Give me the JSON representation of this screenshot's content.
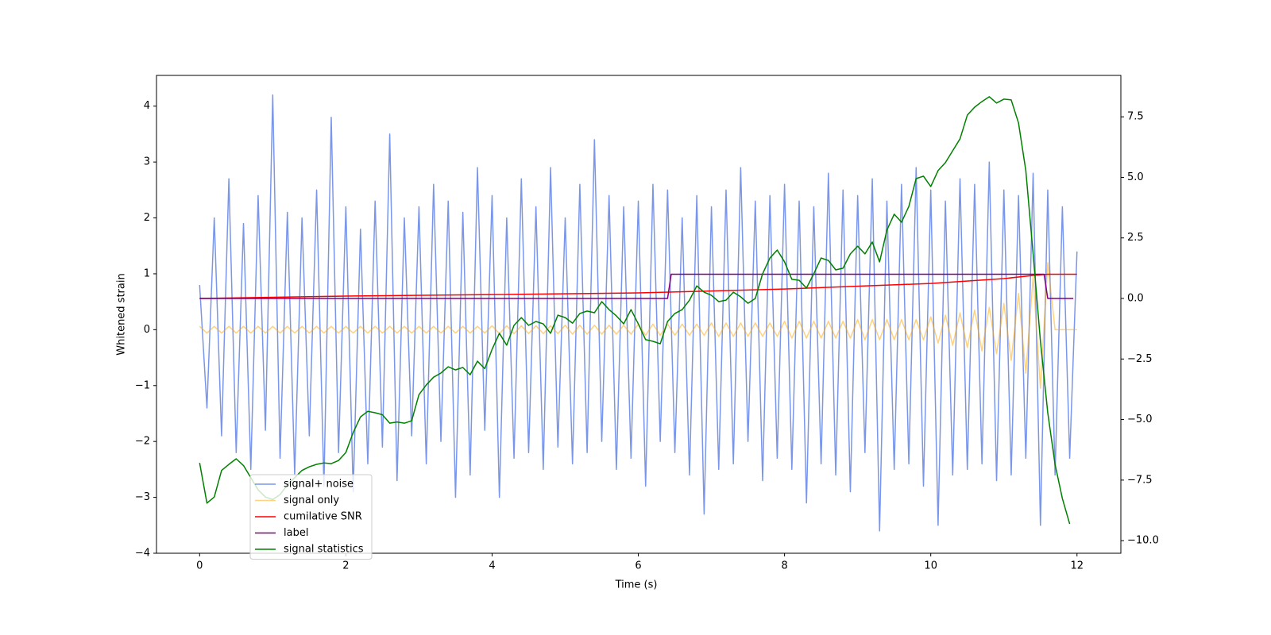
{
  "chart_data": {
    "type": "line",
    "xlabel": "Time (s)",
    "ylabel": "Whitened strain",
    "xlim": [
      -0.59,
      12.6
    ],
    "ylim": [
      -4.0,
      4.55
    ],
    "y2lim": [
      -10.52,
      9.21
    ],
    "xticks": [
      0,
      2,
      4,
      6,
      8,
      10,
      12
    ],
    "yticks": [
      {
        "value": -4,
        "label": "−4"
      },
      {
        "value": -3,
        "label": "−3"
      },
      {
        "value": -2,
        "label": "−2"
      },
      {
        "value": -1,
        "label": "−1"
      },
      0,
      1,
      2,
      3,
      4
    ],
    "y2ticks": [
      {
        "value": -10,
        "label": "−10.0"
      },
      {
        "value": -7.5,
        "label": "−7.5"
      },
      {
        "value": -5,
        "label": "−5.0"
      },
      {
        "value": -2.5,
        "label": "−2.5"
      },
      {
        "value": 0,
        "label": "0.0"
      },
      {
        "value": 2.5,
        "label": "2.5"
      },
      {
        "value": 5,
        "label": "5.0"
      },
      {
        "value": 7.5,
        "label": "7.5"
      }
    ],
    "grid": false,
    "legend": "lower left",
    "series": [
      {
        "name": "signal+ noise",
        "color": "#4169e1",
        "alpha": 0.7,
        "x": [
          0,
          0.1,
          0.2,
          0.3,
          0.4,
          0.5,
          0.6,
          0.7,
          0.8,
          0.9,
          1,
          1.1,
          1.2,
          1.3,
          1.4,
          1.5,
          1.6,
          1.7,
          1.8,
          1.9,
          2,
          2.1,
          2.2,
          2.3,
          2.4,
          2.5,
          2.6,
          2.7,
          2.8,
          2.9,
          3,
          3.1,
          3.2,
          3.3,
          3.4,
          3.5,
          3.6,
          3.7,
          3.8,
          3.9,
          4,
          4.1,
          4.2,
          4.3,
          4.4,
          4.5,
          4.6,
          4.7,
          4.8,
          4.9,
          5,
          5.1,
          5.2,
          5.3,
          5.4,
          5.5,
          5.6,
          5.7,
          5.8,
          5.9,
          6,
          6.1,
          6.2,
          6.3,
          6.4,
          6.5,
          6.6,
          6.7,
          6.8,
          6.9,
          7,
          7.1,
          7.2,
          7.3,
          7.4,
          7.5,
          7.6,
          7.7,
          7.8,
          7.9,
          8,
          8.1,
          8.2,
          8.3,
          8.4,
          8.5,
          8.6,
          8.7,
          8.8,
          8.9,
          9,
          9.1,
          9.2,
          9.3,
          9.4,
          9.5,
          9.6,
          9.7,
          9.8,
          9.9,
          10,
          10.1,
          10.2,
          10.3,
          10.4,
          10.5,
          10.6,
          10.7,
          10.8,
          10.9,
          11,
          11.1,
          11.2,
          11.3,
          11.4,
          11.5,
          11.6,
          11.7,
          11.8,
          11.9,
          12
        ],
        "values": [
          0.8,
          -1.4,
          2.0,
          -1.9,
          2.7,
          -2.2,
          1.9,
          -2.5,
          2.4,
          -1.8,
          4.2,
          -2.3,
          2.1,
          -2.6,
          2.0,
          -1.9,
          2.5,
          -2.8,
          3.8,
          -2.2,
          2.2,
          -2.9,
          1.8,
          -2.4,
          2.3,
          -2.1,
          3.5,
          -2.7,
          2.0,
          -1.9,
          2.2,
          -2.4,
          2.6,
          -2.0,
          2.3,
          -3.0,
          2.1,
          -2.6,
          2.9,
          -1.8,
          2.4,
          -3.0,
          2.0,
          -2.3,
          2.7,
          -2.2,
          2.2,
          -2.5,
          2.9,
          -2.1,
          2.0,
          -2.4,
          2.6,
          -2.2,
          3.4,
          -2.0,
          2.4,
          -2.5,
          2.2,
          -2.3,
          2.3,
          -2.8,
          2.6,
          -2.0,
          2.5,
          -2.2,
          2.0,
          -2.6,
          2.4,
          -3.3,
          2.2,
          -2.5,
          2.5,
          -2.4,
          2.9,
          -2.0,
          2.3,
          -2.7,
          2.4,
          -2.3,
          2.6,
          -2.5,
          2.3,
          -3.1,
          2.2,
          -2.4,
          2.8,
          -2.6,
          2.5,
          -2.9,
          2.4,
          -2.2,
          2.7,
          -3.6,
          2.3,
          -2.5,
          2.6,
          -2.4,
          2.9,
          -2.8,
          2.5,
          -3.5,
          2.3,
          -2.6,
          2.7,
          -2.5,
          2.6,
          -2.4,
          3.0,
          -2.7,
          2.5,
          -2.6,
          2.4,
          -2.3,
          2.8,
          -3.5,
          2.5,
          -2.6,
          2.2,
          -2.3,
          1.4
        ]
      },
      {
        "name": "signal only",
        "color": "#ffa500",
        "alpha": 0.5,
        "x": [
          0,
          0.1,
          0.2,
          0.3,
          0.4,
          0.5,
          0.6,
          0.7,
          0.8,
          0.9,
          1,
          1.1,
          1.2,
          1.3,
          1.4,
          1.5,
          1.6,
          1.7,
          1.8,
          1.9,
          2,
          2.1,
          2.2,
          2.3,
          2.4,
          2.5,
          2.6,
          2.7,
          2.8,
          2.9,
          3,
          3.1,
          3.2,
          3.3,
          3.4,
          3.5,
          3.6,
          3.7,
          3.8,
          3.9,
          4,
          4.1,
          4.2,
          4.3,
          4.4,
          4.5,
          4.6,
          4.7,
          4.8,
          4.9,
          5,
          5.1,
          5.2,
          5.3,
          5.4,
          5.5,
          5.6,
          5.7,
          5.8,
          5.9,
          6,
          6.1,
          6.2,
          6.3,
          6.4,
          6.5,
          6.6,
          6.7,
          6.8,
          6.9,
          7,
          7.1,
          7.2,
          7.3,
          7.4,
          7.5,
          7.6,
          7.7,
          7.8,
          7.9,
          8,
          8.1,
          8.2,
          8.3,
          8.4,
          8.5,
          8.6,
          8.7,
          8.8,
          8.9,
          9,
          9.1,
          9.2,
          9.3,
          9.4,
          9.5,
          9.6,
          9.7,
          9.8,
          9.9,
          10,
          10.1,
          10.2,
          10.3,
          10.4,
          10.5,
          10.6,
          10.7,
          10.8,
          10.9,
          11,
          11.1,
          11.2,
          11.3,
          11.4,
          11.5,
          11.6,
          11.7,
          11.8,
          11.9,
          12
        ],
        "values": [
          0.06,
          -0.06,
          0.06,
          -0.06,
          0.06,
          -0.06,
          0.06,
          -0.06,
          0.06,
          -0.06,
          0.06,
          -0.06,
          0.06,
          -0.06,
          0.06,
          -0.06,
          0.06,
          -0.06,
          0.06,
          -0.06,
          0.06,
          -0.06,
          0.06,
          -0.06,
          0.06,
          -0.06,
          0.06,
          -0.06,
          0.06,
          -0.06,
          0.06,
          -0.06,
          0.06,
          -0.06,
          0.06,
          -0.06,
          0.06,
          -0.06,
          0.06,
          -0.06,
          0.07,
          -0.07,
          0.07,
          -0.07,
          0.07,
          -0.07,
          0.07,
          -0.07,
          0.07,
          -0.07,
          0.08,
          -0.08,
          0.08,
          -0.08,
          0.08,
          -0.08,
          0.08,
          -0.08,
          0.08,
          -0.08,
          0.1,
          -0.1,
          0.1,
          -0.1,
          0.1,
          -0.1,
          0.1,
          -0.1,
          0.1,
          -0.1,
          0.12,
          -0.12,
          0.12,
          -0.12,
          0.12,
          -0.12,
          0.12,
          -0.12,
          0.12,
          -0.12,
          0.15,
          -0.15,
          0.15,
          -0.15,
          0.15,
          -0.15,
          0.15,
          -0.15,
          0.15,
          -0.15,
          0.18,
          -0.18,
          0.18,
          -0.18,
          0.18,
          -0.18,
          0.18,
          -0.18,
          0.18,
          -0.18,
          0.23,
          -0.24,
          0.26,
          -0.28,
          0.3,
          -0.32,
          0.35,
          -0.38,
          0.4,
          -0.43,
          0.47,
          -0.55,
          0.65,
          -0.78,
          0.95,
          -1.05,
          1.2,
          0,
          0,
          0,
          0
        ]
      },
      {
        "name": "cumilative SNR",
        "color": "#ff0000",
        "axis": "y2",
        "x": [
          0,
          2,
          4,
          6,
          8,
          10,
          11,
          11.4,
          11.6,
          12
        ],
        "values": [
          0,
          0.1,
          0.16,
          0.23,
          0.39,
          0.62,
          0.82,
          0.95,
          1.0,
          1.0
        ]
      },
      {
        "name": "label",
        "color": "#800080",
        "axis": "y2",
        "x": [
          0,
          6.4,
          6.45,
          11.55,
          11.6,
          11.95
        ],
        "values": [
          0,
          0,
          1,
          1,
          0,
          0
        ]
      },
      {
        "name": "signal statistics",
        "color": "#008000",
        "axis": "y2",
        "x": [
          0,
          0.1,
          0.2,
          0.3,
          0.4,
          0.5,
          0.6,
          0.7,
          0.8,
          0.9,
          1,
          1.1,
          1.2,
          1.3,
          1.4,
          1.5,
          1.6,
          1.7,
          1.8,
          1.9,
          2,
          2.1,
          2.2,
          2.3,
          2.4,
          2.5,
          2.6,
          2.7,
          2.8,
          2.9,
          3,
          3.1,
          3.2,
          3.3,
          3.4,
          3.5,
          3.6,
          3.7,
          3.8,
          3.9,
          4,
          4.1,
          4.2,
          4.3,
          4.4,
          4.5,
          4.6,
          4.7,
          4.8,
          4.9,
          5,
          5.1,
          5.2,
          5.3,
          5.4,
          5.5,
          5.6,
          5.7,
          5.8,
          5.9,
          6,
          6.1,
          6.2,
          6.3,
          6.4,
          6.5,
          6.6,
          6.7,
          6.8,
          6.9,
          7,
          7.1,
          7.2,
          7.3,
          7.4,
          7.5,
          7.6,
          7.7,
          7.8,
          7.9,
          8,
          8.1,
          8.2,
          8.3,
          8.4,
          8.5,
          8.6,
          8.7,
          8.8,
          8.9,
          9,
          9.1,
          9.2,
          9.3,
          9.4,
          9.5,
          9.6,
          9.7,
          9.8,
          9.9,
          10,
          10.1,
          10.2,
          10.3,
          10.4,
          10.5,
          10.6,
          10.7,
          10.8,
          10.9,
          11,
          11.1,
          11.2,
          11.3,
          11.4,
          11.5,
          11.6,
          11.7,
          11.8,
          11.9
        ],
        "values": [
          -6.79,
          -8.45,
          -8.2,
          -7.1,
          -6.85,
          -6.62,
          -6.9,
          -7.4,
          -7.9,
          -8.2,
          -8.3,
          -8.1,
          -7.7,
          -7.4,
          -7.1,
          -6.95,
          -6.85,
          -6.79,
          -6.82,
          -6.69,
          -6.36,
          -5.54,
          -4.89,
          -4.66,
          -4.72,
          -4.8,
          -5.15,
          -5.1,
          -5.15,
          -5.05,
          -3.97,
          -3.57,
          -3.25,
          -3.08,
          -2.82,
          -2.95,
          -2.85,
          -3.15,
          -2.59,
          -2.9,
          -2.1,
          -1.44,
          -1.93,
          -1.11,
          -0.79,
          -1.11,
          -0.95,
          -1.05,
          -1.44,
          -0.69,
          -0.79,
          -1.02,
          -0.62,
          -0.52,
          -0.59,
          -0.13,
          -0.46,
          -0.72,
          -1.05,
          -0.46,
          -1.05,
          -1.7,
          -1.77,
          -1.87,
          -0.95,
          -0.62,
          -0.46,
          -0.07,
          0.52,
          0.26,
          0.13,
          -0.13,
          -0.07,
          0.26,
          0.07,
          -0.2,
          0.0,
          1.02,
          1.67,
          2.0,
          1.51,
          0.79,
          0.75,
          0.43,
          1.02,
          1.67,
          1.57,
          1.18,
          1.25,
          1.84,
          2.16,
          1.84,
          2.33,
          1.51,
          2.82,
          3.48,
          3.15,
          3.8,
          4.95,
          5.05,
          4.62,
          5.28,
          5.61,
          6.1,
          6.59,
          7.57,
          7.9,
          8.13,
          8.33,
          8.07,
          8.23,
          8.2,
          7.25,
          5.28,
          1.84,
          -1.77,
          -4.72,
          -6.85,
          -8.26,
          -9.31
        ]
      }
    ]
  }
}
